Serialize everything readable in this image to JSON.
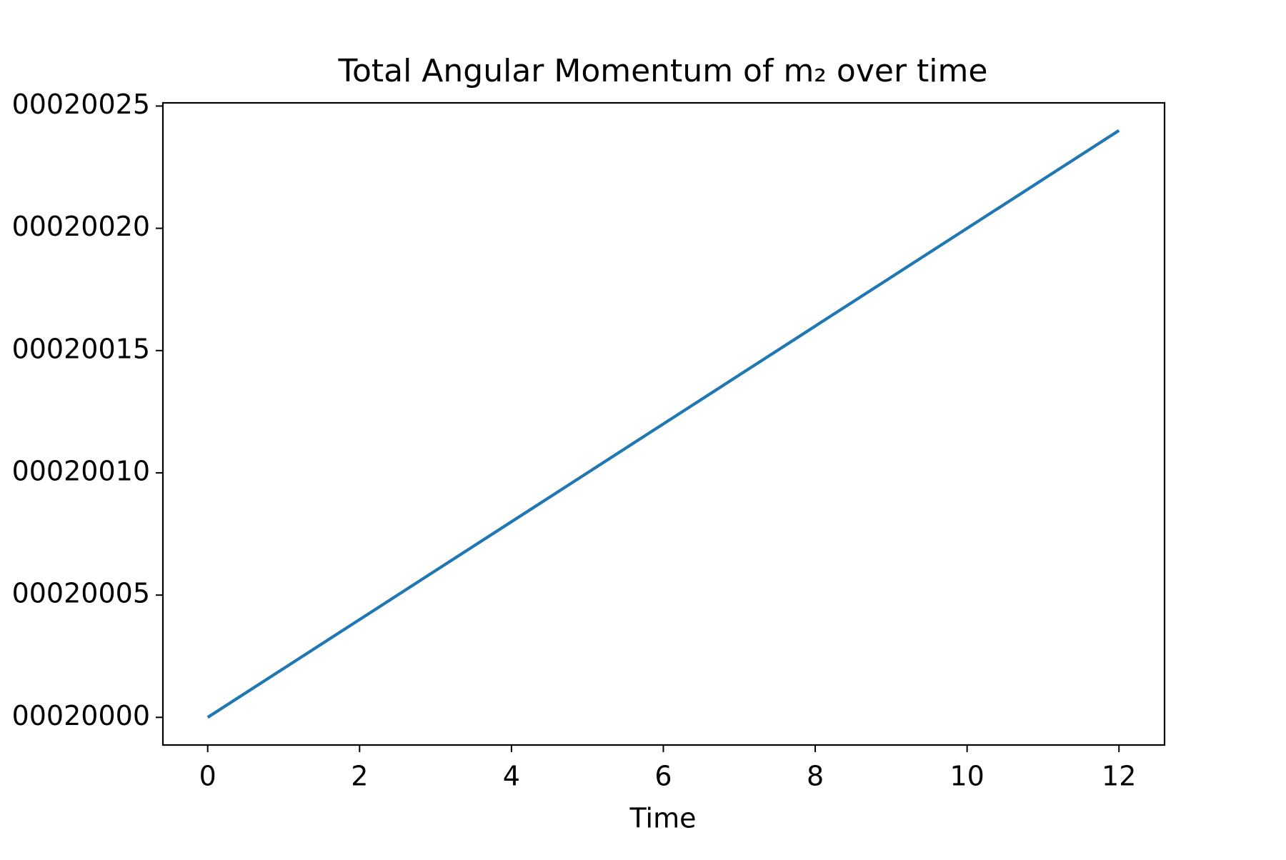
{
  "chart_data": {
    "type": "line",
    "title": "Total Angular Momentum of m₂ over time",
    "xlabel": "Time",
    "x": [
      0,
      1,
      2,
      3,
      4,
      5,
      6,
      7,
      8,
      9,
      10,
      11,
      12
    ],
    "series": [
      {
        "name": "m2",
        "color": "#1f77b4",
        "values": [
          20000,
          20002,
          20004,
          20006,
          20008,
          20010,
          20012,
          20014,
          20016,
          20018,
          20020,
          20022,
          20024
        ]
      }
    ],
    "xlim": [
      -0.59,
      12.6
    ],
    "xticks": [
      0,
      2,
      4,
      6,
      8,
      10,
      12
    ],
    "ylim": [
      19998.87,
      20025.13
    ],
    "yticks": [
      {
        "value": 20000,
        "label": "00020000"
      },
      {
        "value": 20005,
        "label": "00020005"
      },
      {
        "value": 20010,
        "label": "00020010"
      },
      {
        "value": 20015,
        "label": "00020015"
      },
      {
        "value": 20020,
        "label": "00020020"
      },
      {
        "value": 20025,
        "label": "00020025"
      }
    ],
    "grid": false
  }
}
